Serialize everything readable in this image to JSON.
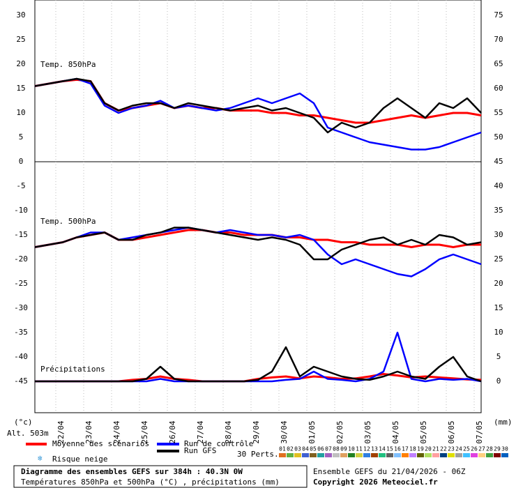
{
  "chart_data": [
    {
      "type": "line",
      "title": "Temp. 850hPa",
      "ylim": [
        0,
        33.14
      ],
      "yticks": [
        0,
        5,
        10,
        15,
        20,
        25,
        30
      ],
      "y2lim": [
        45,
        78.14
      ],
      "y2ticks": [
        45,
        50,
        55,
        60,
        65,
        70,
        75
      ],
      "x": [
        0,
        12,
        24,
        36,
        48,
        60,
        72,
        84,
        96,
        108,
        120,
        132,
        144,
        156,
        168,
        180,
        192,
        204,
        216,
        228,
        240,
        252,
        264,
        276,
        288,
        300,
        312,
        324,
        336,
        348,
        360,
        372,
        384
      ],
      "xlim": [
        0,
        384
      ],
      "series": [
        {
          "name": "Moyenne des scénarios",
          "color": "#ff0000",
          "values": [
            15.5,
            16,
            16.5,
            16.8,
            16.5,
            12,
            10.5,
            11,
            11.5,
            12,
            11,
            11.5,
            11,
            11,
            10.5,
            10.5,
            10.5,
            10,
            10,
            9.5,
            9.5,
            9,
            8.5,
            8,
            8,
            8.5,
            9,
            9.5,
            9,
            9.5,
            10,
            10,
            9.5
          ]
        },
        {
          "name": "Run de contrôle",
          "color": "#0000ff",
          "values": [
            15.5,
            16,
            16.5,
            17,
            16,
            11.5,
            10,
            11,
            11.5,
            12.5,
            11,
            11.5,
            11,
            10.5,
            11,
            12,
            13,
            12,
            13,
            14,
            12,
            7,
            6,
            5,
            4,
            3.5,
            3,
            2.5,
            2.5,
            3,
            4,
            5,
            6
          ]
        },
        {
          "name": "Run GFS",
          "color": "#000000",
          "values": [
            15.5,
            16,
            16.5,
            17,
            16.5,
            12,
            10.5,
            11.5,
            12,
            12,
            11,
            12,
            11.5,
            11,
            10.5,
            11,
            11.5,
            10.5,
            11,
            10,
            9,
            6,
            8,
            7,
            8,
            11,
            13,
            11,
            9,
            12,
            11,
            13,
            10
          ]
        }
      ]
    },
    {
      "type": "line",
      "title": "Temp. 500hPa",
      "ylim": [
        -51.43,
        0
      ],
      "yticks": [
        -45,
        -40,
        -35,
        -30,
        -25,
        -20,
        -15,
        -10,
        -5
      ],
      "x": [
        0,
        12,
        24,
        36,
        48,
        60,
        72,
        84,
        96,
        108,
        120,
        132,
        144,
        156,
        168,
        180,
        192,
        204,
        216,
        228,
        240,
        252,
        264,
        276,
        288,
        300,
        312,
        324,
        336,
        348,
        360,
        372,
        384
      ],
      "xlim": [
        0,
        384
      ],
      "xticks": [
        {
          "value": 18,
          "label": "22/04"
        },
        {
          "value": 42,
          "label": "23/04"
        },
        {
          "value": 66,
          "label": "24/04"
        },
        {
          "value": 90,
          "label": "25/04"
        },
        {
          "value": 114,
          "label": "26/04"
        },
        {
          "value": 138,
          "label": "27/04"
        },
        {
          "value": 162,
          "label": "28/04"
        },
        {
          "value": 186,
          "label": "29/04"
        },
        {
          "value": 210,
          "label": "30/04"
        },
        {
          "value": 234,
          "label": "01/05"
        },
        {
          "value": 258,
          "label": "02/05"
        },
        {
          "value": 282,
          "label": "03/05"
        },
        {
          "value": 306,
          "label": "04/05"
        },
        {
          "value": 330,
          "label": "05/05"
        },
        {
          "value": 354,
          "label": "06/05"
        },
        {
          "value": 378,
          "label": "07/05"
        }
      ],
      "series": [
        {
          "color": "#ff0000",
          "values": [
            -17.5,
            -17,
            -16.5,
            -15.5,
            -15,
            -14.5,
            -16,
            -16,
            -15.5,
            -15,
            -14.5,
            -14,
            -14,
            -14.5,
            -14.5,
            -15,
            -15,
            -15,
            -15.5,
            -15.5,
            -16,
            -16,
            -16.5,
            -16.5,
            -17,
            -17,
            -17,
            -17.5,
            -17,
            -17,
            -17.5,
            -17,
            -17
          ]
        },
        {
          "color": "#0000ff",
          "values": [
            -17.5,
            -17,
            -16.5,
            -15.5,
            -14.5,
            -14.5,
            -16,
            -15.5,
            -15,
            -14.5,
            -14,
            -13.5,
            -14,
            -14.5,
            -14,
            -14.5,
            -15,
            -15,
            -15.5,
            -15,
            -16,
            -19,
            -21,
            -20,
            -21,
            -22,
            -23,
            -23.5,
            -22,
            -20,
            -19,
            -20,
            -21
          ]
        },
        {
          "color": "#000000",
          "values": [
            -17.5,
            -17,
            -16.5,
            -15.5,
            -15,
            -14.5,
            -16,
            -16,
            -15,
            -14.5,
            -13.5,
            -13.5,
            -14,
            -14.5,
            -15,
            -15.5,
            -16,
            -15.5,
            -16,
            -17,
            -20,
            -20,
            -18,
            -17,
            -16,
            -15.5,
            -17,
            -16,
            -17,
            -15,
            -15.5,
            -17,
            -16.5
          ]
        }
      ]
    },
    {
      "type": "line",
      "title": "Précipitations",
      "axis_side": "right",
      "ylim": [
        -6.43,
        45
      ],
      "yticks": [
        0,
        5,
        10,
        15,
        20,
        25,
        30,
        35,
        40
      ],
      "x": [
        0,
        12,
        24,
        36,
        48,
        60,
        72,
        84,
        96,
        108,
        120,
        132,
        144,
        156,
        168,
        180,
        192,
        204,
        216,
        228,
        240,
        252,
        264,
        276,
        288,
        300,
        312,
        324,
        336,
        348,
        360,
        372,
        384
      ],
      "xlim": [
        0,
        384
      ],
      "series": [
        {
          "color": "#ff0000",
          "values": [
            0,
            0,
            0,
            0,
            0,
            0,
            0,
            0.3,
            0.5,
            1,
            0.5,
            0.3,
            0,
            0,
            0,
            0,
            0.5,
            0.8,
            1,
            0.6,
            1,
            0.8,
            0.5,
            0.6,
            1,
            1.5,
            1.2,
            0.8,
            1,
            0.8,
            0.6,
            0.4,
            0.3
          ]
        },
        {
          "color": "#0000ff",
          "values": [
            0,
            0,
            0,
            0,
            0,
            0,
            0,
            0,
            0,
            0.5,
            0,
            0,
            0,
            0,
            0,
            0,
            0,
            0,
            0.3,
            0.5,
            2,
            0.5,
            0.3,
            0,
            0.5,
            2,
            10,
            0.5,
            0,
            0.5,
            0.3,
            0.5,
            0
          ]
        },
        {
          "color": "#000000",
          "values": [
            0,
            0,
            0,
            0,
            0,
            0,
            0,
            0,
            0.5,
            3,
            0.5,
            0,
            0,
            0,
            0,
            0,
            0.3,
            2,
            7,
            1,
            3,
            2,
            1,
            0.5,
            0.3,
            1,
            2,
            1,
            0.5,
            3,
            5,
            1,
            0
          ]
        }
      ]
    }
  ],
  "axis_labels": {
    "left_unit": "(°c)",
    "altitude": "Alt. 503m",
    "right_unit": "(mm)"
  },
  "legend": {
    "snow": "Risque neige",
    "perturbations_title": "30 Perts.",
    "perturbations": [
      {
        "label": "01",
        "color": "#e07020"
      },
      {
        "label": "02",
        "color": "#60b040"
      },
      {
        "label": "03",
        "color": "#e0c020"
      },
      {
        "label": "04",
        "color": "#4060d0"
      },
      {
        "label": "05",
        "color": "#806020"
      },
      {
        "label": "06",
        "color": "#20a0a0"
      },
      {
        "label": "07",
        "color": "#a060c0"
      },
      {
        "label": "08",
        "color": "#c0c0c0"
      },
      {
        "label": "09",
        "color": "#e0a060"
      },
      {
        "label": "10",
        "color": "#208020"
      },
      {
        "label": "11",
        "color": "#d0d040"
      },
      {
        "label": "12",
        "color": "#3080e0"
      },
      {
        "label": "13",
        "color": "#a04000"
      },
      {
        "label": "14",
        "color": "#20c080"
      },
      {
        "label": "15",
        "color": "#606060"
      },
      {
        "label": "16",
        "color": "#80c0ff"
      },
      {
        "label": "17",
        "color": "#ff8000"
      },
      {
        "label": "18",
        "color": "#c080ff"
      },
      {
        "label": "19",
        "color": "#606000"
      },
      {
        "label": "20",
        "color": "#b0e060"
      },
      {
        "label": "21",
        "color": "#ffa0a0"
      },
      {
        "label": "22",
        "color": "#004080"
      },
      {
        "label": "23",
        "color": "#e0e000"
      },
      {
        "label": "24",
        "color": "#a0a0a0"
      },
      {
        "label": "25",
        "color": "#40c0ff"
      },
      {
        "label": "26",
        "color": "#e040e0"
      },
      {
        "label": "27",
        "color": "#ffd080"
      },
      {
        "label": "28",
        "color": "#40a040"
      },
      {
        "label": "29",
        "color": "#800000"
      },
      {
        "label": "30",
        "color": "#0060c0"
      }
    ]
  },
  "footer": {
    "title": "Diagramme des ensembles GEFS sur 384h : 40.3N 0W",
    "subtitle": "Températures 850hPa et 500hPa (°C) , précipitations (mm)",
    "run": "Ensemble GEFS du 21/04/2026 - 06Z",
    "copyright": "Copyright 2026 Meteociel.fr"
  }
}
